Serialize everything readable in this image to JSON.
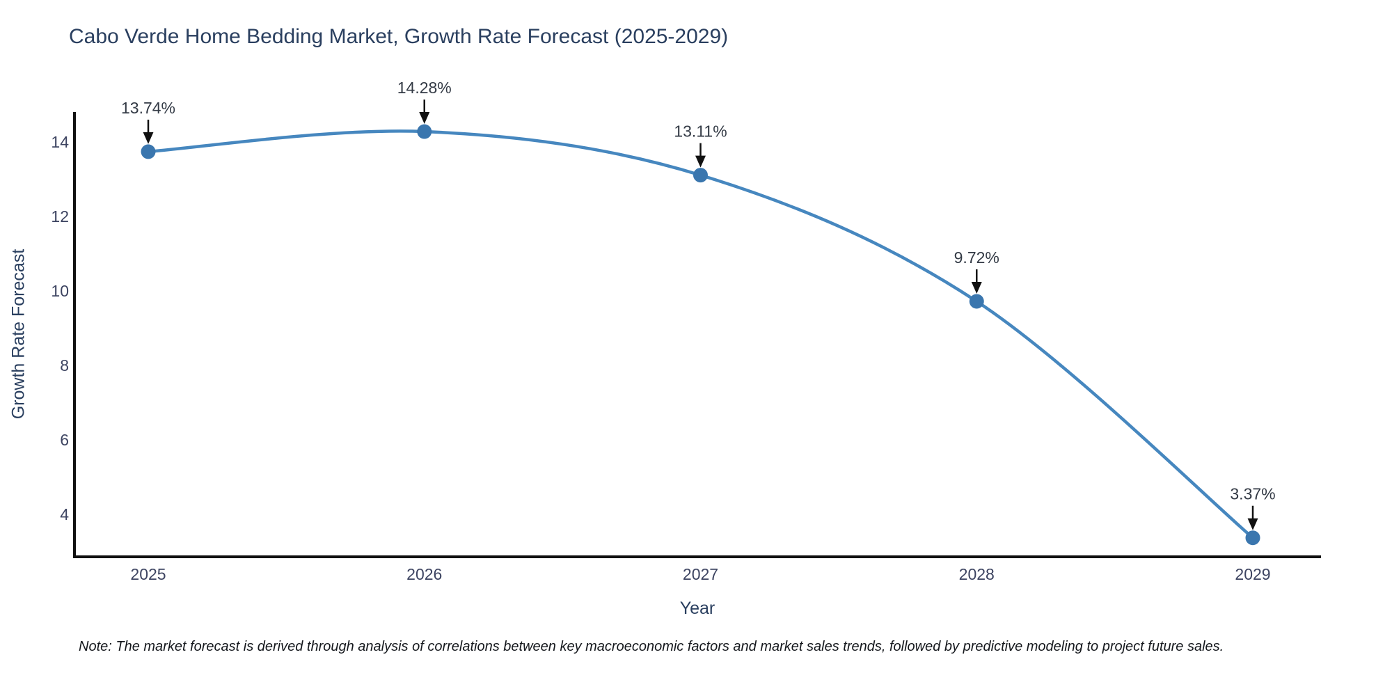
{
  "note": "Note: The market forecast is derived through analysis of correlations between key macroeconomic factors and market sales trends, followed by predictive modeling to project future sales.",
  "chart_data": {
    "type": "line",
    "title": "Cabo Verde Home Bedding Market, Growth Rate Forecast (2025-2029)",
    "xlabel": "Year",
    "ylabel": "Growth Rate Forecast",
    "categories": [
      "2025",
      "2026",
      "2027",
      "2028",
      "2029"
    ],
    "values": [
      13.74,
      14.28,
      13.11,
      9.72,
      3.37
    ],
    "point_labels": [
      "13.74%",
      "14.28%",
      "13.11%",
      "9.72%",
      "3.37%"
    ],
    "yticks": [
      4,
      6,
      8,
      10,
      12,
      14
    ],
    "ylim": [
      2.86,
      14.8
    ],
    "grid": false,
    "legend": "none",
    "line_shape": "spline",
    "annotation_style": "label-with-down-arrow",
    "colors": {
      "line": "#4687bf",
      "marker": "#3a76ae",
      "axis": "#111111",
      "tick_text": "#3d4461",
      "title_text": "#2a3f5f",
      "annotation_text": "#333a45",
      "arrow": "#111111"
    }
  }
}
